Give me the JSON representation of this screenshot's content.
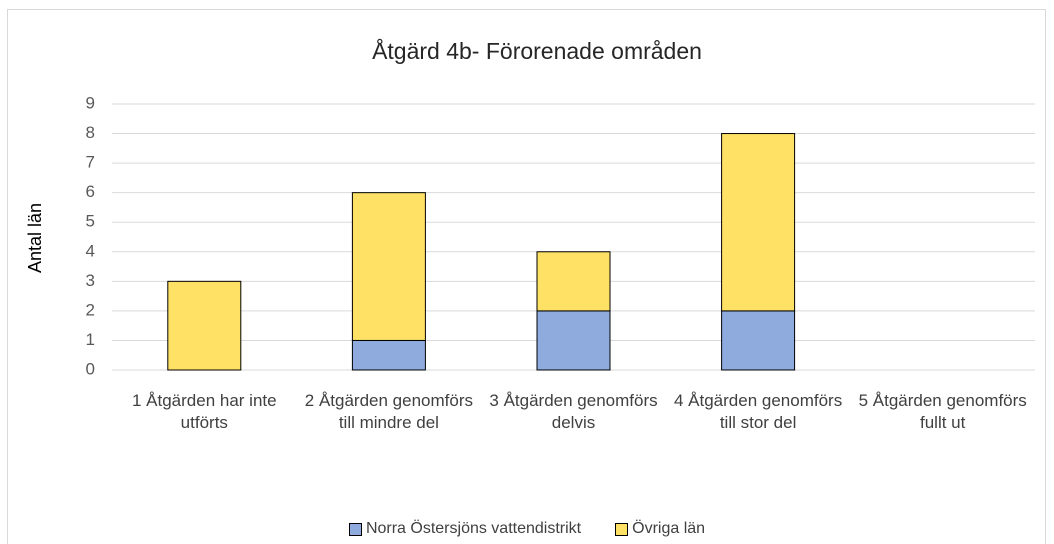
{
  "chart_data": {
    "type": "bar",
    "stacked": true,
    "title": "Åtgärd 4b- Förorenade områden",
    "y_label": "Antal län",
    "categories": [
      "1 Åtgärden har inte utförts",
      "2 Åtgärden genomförs till mindre del",
      "3 Åtgärden genomförs delvis",
      "4 Åtgärden genomförs till stor del",
      "5 Åtgärden genomförs fullt ut"
    ],
    "series": [
      {
        "name": "Norra Östersjöns vattendistrikt",
        "color": "#8faadc",
        "values": [
          0,
          1,
          2,
          2,
          0
        ]
      },
      {
        "name": "Övriga län",
        "color": "#ffe265",
        "values": [
          3,
          5,
          2,
          6,
          0
        ]
      }
    ],
    "ylim": [
      0,
      9
    ],
    "yticks": [
      0,
      1,
      2,
      3,
      4,
      5,
      6,
      7,
      8,
      9
    ],
    "grid": true
  }
}
